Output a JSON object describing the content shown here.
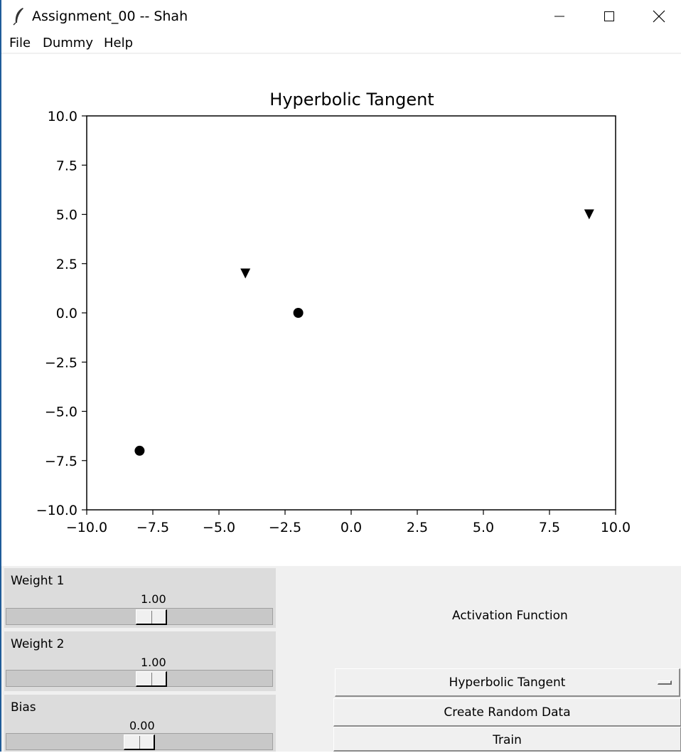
{
  "window": {
    "title": "Assignment_00 -- Shah"
  },
  "menu": {
    "items": [
      "File",
      "Dummy",
      "Help"
    ]
  },
  "chart_data": {
    "type": "scatter",
    "title": "Hyperbolic Tangent",
    "xlim": [
      -10.0,
      10.0
    ],
    "ylim": [
      -10.0,
      10.0
    ],
    "xticks": [
      "−10.0",
      "−7.5",
      "−5.0",
      "−2.5",
      "0.0",
      "2.5",
      "5.0",
      "7.5",
      "10.0"
    ],
    "yticks": [
      "10.0",
      "7.5",
      "5.0",
      "2.5",
      "0.0",
      "−2.5",
      "−5.0",
      "−7.5",
      "−10.0"
    ],
    "grid": false,
    "series": [
      {
        "marker": "circle",
        "color": "#000000",
        "points": [
          [
            -2,
            0
          ],
          [
            -8,
            -7
          ]
        ]
      },
      {
        "marker": "triangle-down",
        "color": "#000000",
        "points": [
          [
            -4,
            2
          ],
          [
            9,
            5
          ]
        ]
      }
    ]
  },
  "controls": {
    "weight1": {
      "label": "Weight 1",
      "value": "1.00",
      "fraction": 0.55
    },
    "weight2": {
      "label": "Weight 2",
      "value": "1.00",
      "fraction": 0.55
    },
    "bias": {
      "label": "Bias",
      "value": "0.00",
      "fraction": 0.5
    },
    "activation_label": "Activation Function",
    "activation_selected": "Hyperbolic Tangent",
    "create_button": "Create Random Data",
    "train_button": "Train"
  }
}
